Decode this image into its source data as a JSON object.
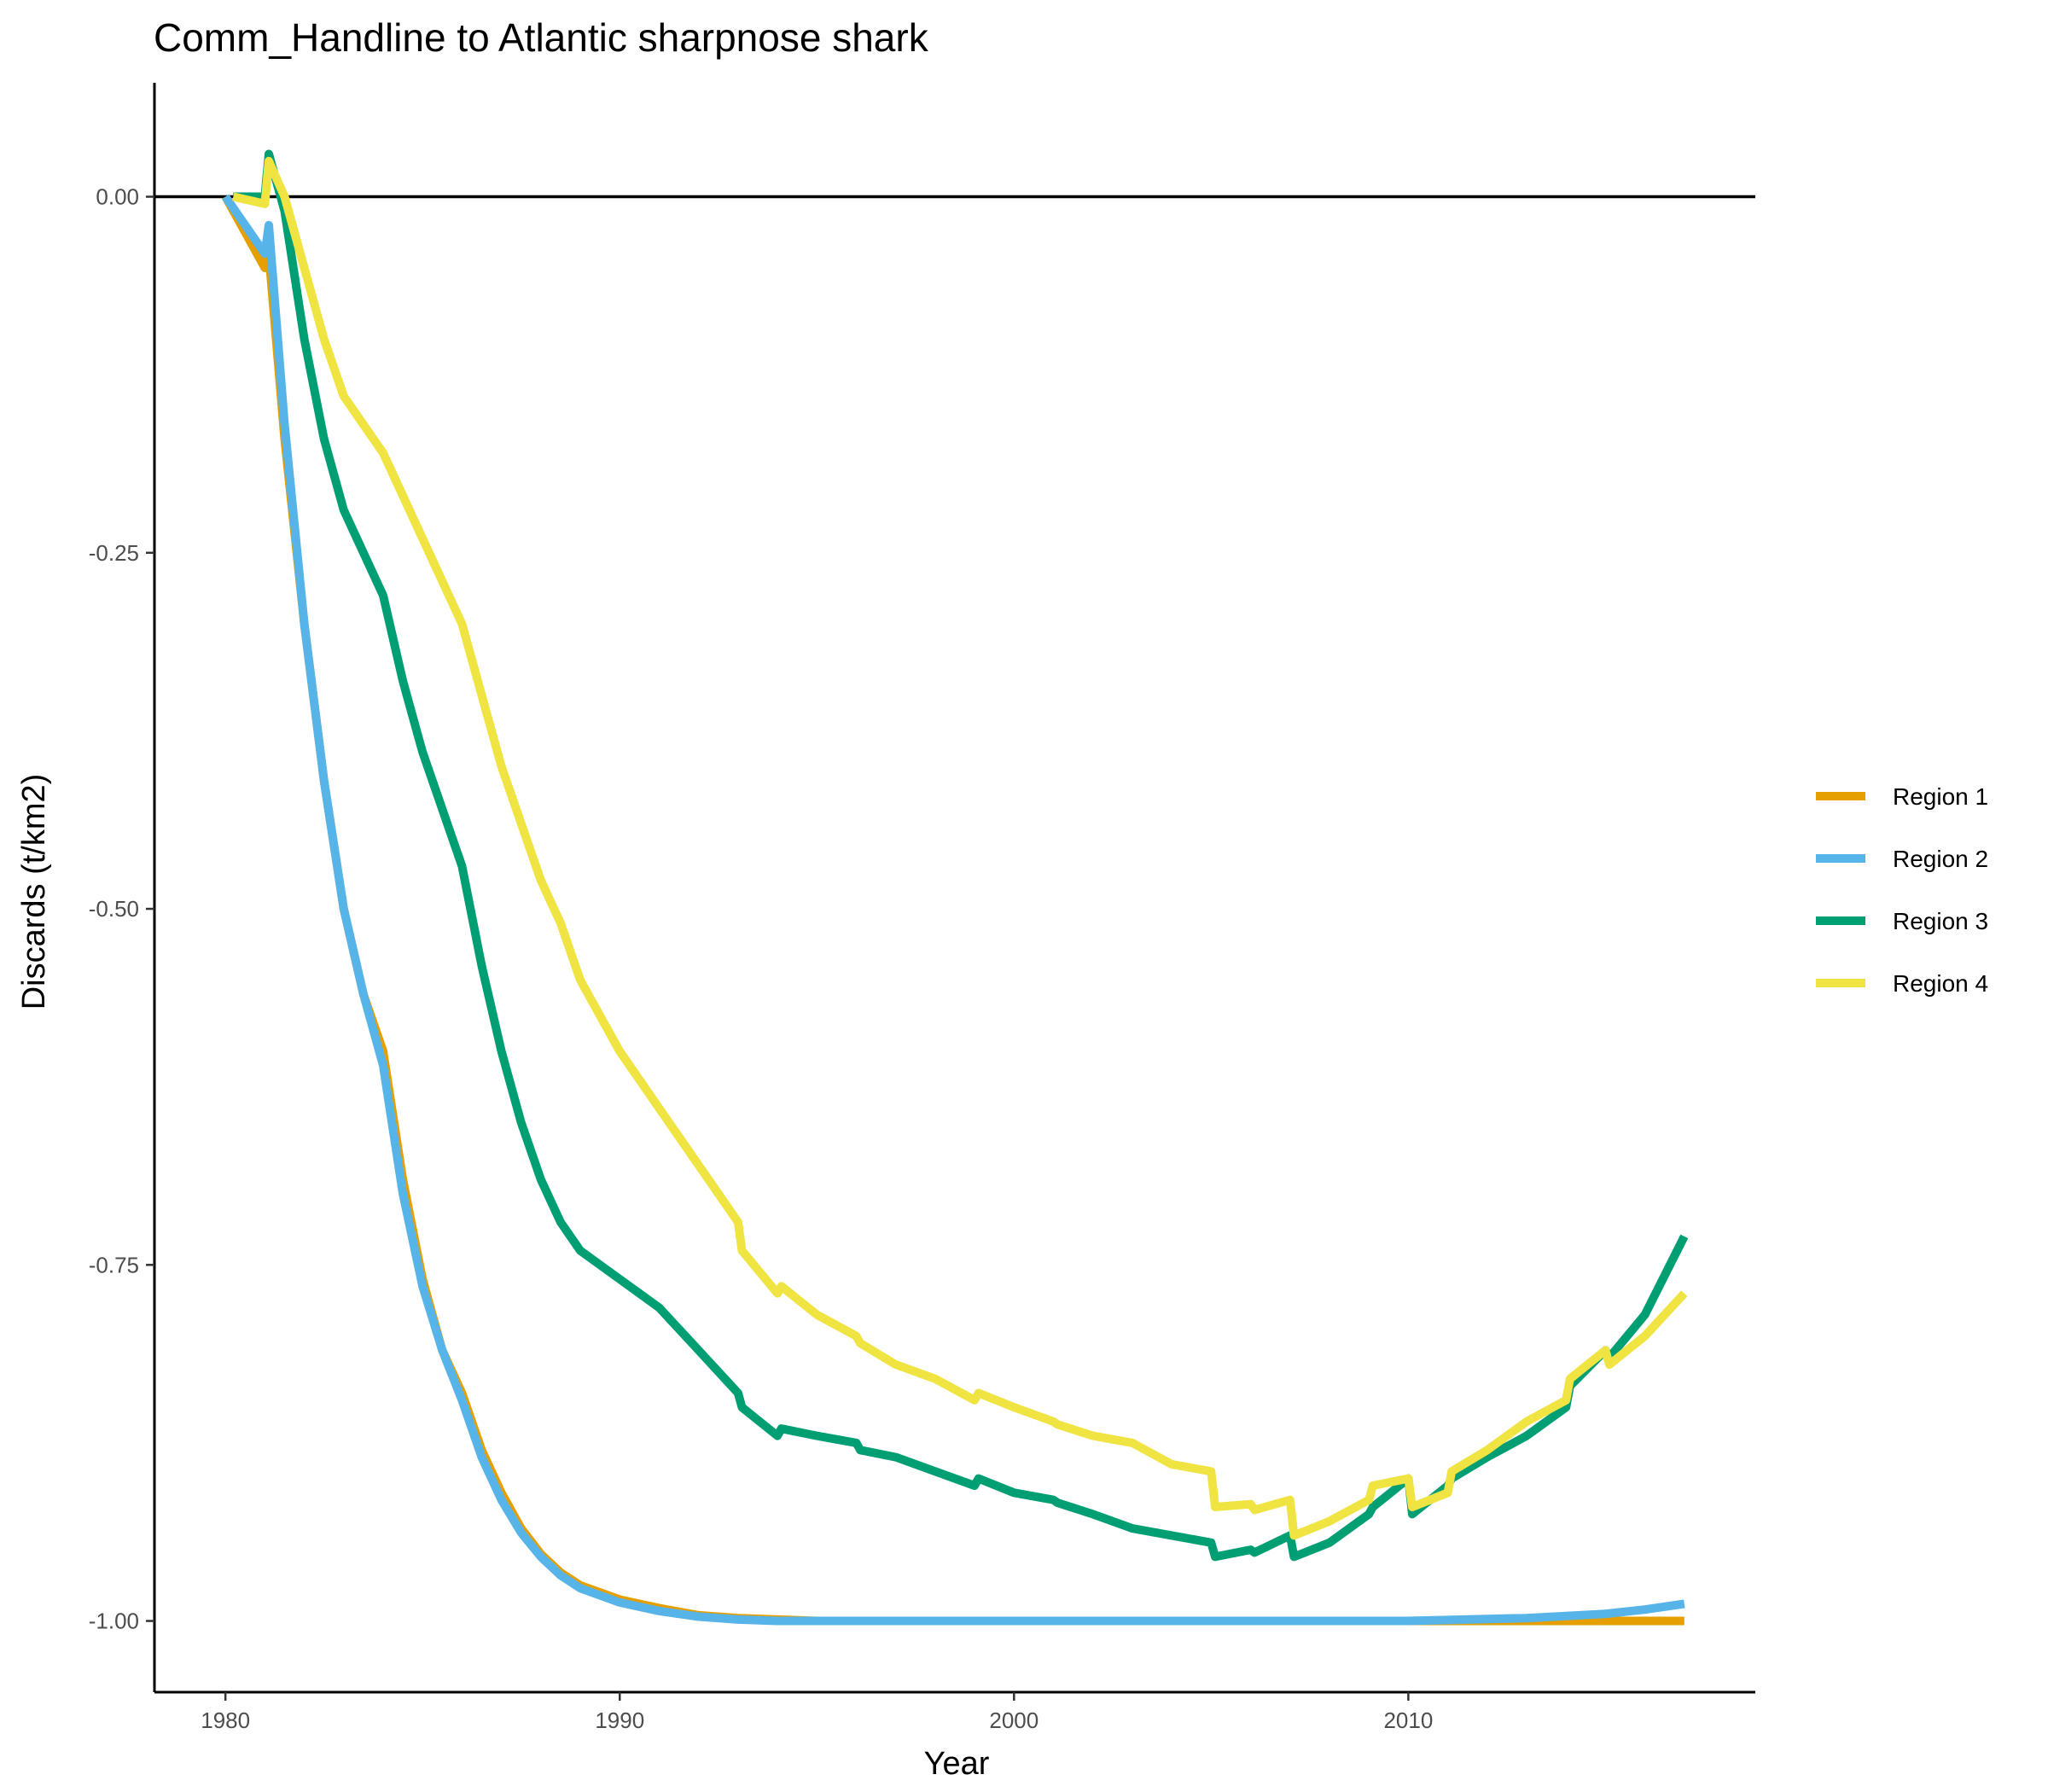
{
  "chart_data": {
    "type": "line",
    "title": "Comm_Handline to Atlantic sharpnose shark",
    "xlabel": "Year",
    "ylabel": "Discards (t/km2)",
    "xlim": [
      1978.2,
      2018.8
    ],
    "ylim": [
      -1.05,
      0.08
    ],
    "xticks": [
      1980,
      1990,
      2000,
      2010
    ],
    "yticks": [
      0.0,
      -0.25,
      -0.5,
      -0.75,
      -1.0
    ],
    "ytick_labels": [
      "0.00",
      "-0.25",
      "-0.50",
      "-0.75",
      "-1.00"
    ],
    "reference_line_y": 0,
    "grid": false,
    "legend_position": "right",
    "series": [
      {
        "name": "Region 1",
        "color": "#E69F00",
        "x": [
          1980.0,
          1981.0,
          1981.1,
          1981.5,
          1982.0,
          1982.5,
          1983.0,
          1983.5,
          1984.0,
          1984.5,
          1985.0,
          1985.5,
          1986.0,
          1986.5,
          1987.0,
          1987.5,
          1988.0,
          1988.5,
          1989.0,
          1990.0,
          1991.0,
          1992.0,
          1993.0,
          1994.0,
          1995.0,
          2000.0,
          2005.0,
          2010.0,
          2015.0,
          2017.0
        ],
        "y": [
          0.0,
          -0.05,
          -0.04,
          -0.17,
          -0.3,
          -0.41,
          -0.5,
          -0.56,
          -0.6,
          -0.69,
          -0.76,
          -0.81,
          -0.84,
          -0.88,
          -0.91,
          -0.935,
          -0.953,
          -0.966,
          -0.975,
          -0.985,
          -0.991,
          -0.996,
          -0.998,
          -0.999,
          -1.0,
          -1.0,
          -1.0,
          -1.0,
          -1.0,
          -1.0
        ]
      },
      {
        "name": "Region 2",
        "color": "#56B4E9",
        "x": [
          1980.0,
          1981.0,
          1981.1,
          1981.5,
          1982.0,
          1982.5,
          1983.0,
          1983.5,
          1984.0,
          1984.5,
          1985.0,
          1985.5,
          1986.0,
          1986.5,
          1987.0,
          1987.5,
          1988.0,
          1988.5,
          1989.0,
          1990.0,
          1991.0,
          1992.0,
          1993.0,
          1994.0,
          1995.0,
          2000.0,
          2005.0,
          2010.0,
          2013.0,
          2015.0,
          2016.0,
          2017.0
        ],
        "y": [
          0.0,
          -0.04,
          -0.02,
          -0.16,
          -0.3,
          -0.41,
          -0.5,
          -0.56,
          -0.61,
          -0.7,
          -0.765,
          -0.81,
          -0.845,
          -0.885,
          -0.915,
          -0.938,
          -0.955,
          -0.968,
          -0.977,
          -0.987,
          -0.993,
          -0.997,
          -0.999,
          -1.0,
          -1.0,
          -1.0,
          -1.0,
          -1.0,
          -0.998,
          -0.995,
          -0.992,
          -0.988
        ]
      },
      {
        "name": "Region 3",
        "color": "#009E73",
        "x": [
          1980.2,
          1981.0,
          1981.1,
          1981.5,
          1982.0,
          1982.5,
          1983.0,
          1983.5,
          1984.0,
          1984.5,
          1985.0,
          1985.5,
          1986.0,
          1986.5,
          1987.0,
          1987.5,
          1988.0,
          1988.5,
          1989.0,
          1990.0,
          1991.0,
          1992.0,
          1993.0,
          1993.1,
          1994.0,
          1994.1,
          1995.0,
          1996.0,
          1996.1,
          1997.0,
          1998.0,
          1999.0,
          1999.1,
          2000.0,
          2001.0,
          2001.1,
          2002.0,
          2003.0,
          2004.0,
          2005.0,
          2005.1,
          2006.0,
          2006.1,
          2007.0,
          2007.1,
          2008.0,
          2009.0,
          2009.1,
          2010.0,
          2010.1,
          2011.0,
          2011.1,
          2012.0,
          2013.0,
          2014.0,
          2014.1,
          2015.0,
          2015.1,
          2016.0,
          2017.0
        ],
        "y": [
          0.0,
          0.0,
          0.03,
          -0.01,
          -0.1,
          -0.17,
          -0.22,
          -0.25,
          -0.28,
          -0.34,
          -0.39,
          -0.43,
          -0.47,
          -0.54,
          -0.6,
          -0.65,
          -0.69,
          -0.72,
          -0.74,
          -0.76,
          -0.78,
          -0.81,
          -0.84,
          -0.85,
          -0.87,
          -0.865,
          -0.87,
          -0.875,
          -0.88,
          -0.885,
          -0.895,
          -0.905,
          -0.9,
          -0.91,
          -0.915,
          -0.917,
          -0.925,
          -0.935,
          -0.94,
          -0.945,
          -0.955,
          -0.95,
          -0.952,
          -0.94,
          -0.955,
          -0.945,
          -0.925,
          -0.92,
          -0.9,
          -0.925,
          -0.905,
          -0.9,
          -0.885,
          -0.87,
          -0.85,
          -0.835,
          -0.81,
          -0.815,
          -0.785,
          -0.73
        ]
      },
      {
        "name": "Region 4",
        "color": "#F0E442",
        "x": [
          1980.2,
          1981.0,
          1981.1,
          1981.5,
          1982.0,
          1982.5,
          1983.0,
          1983.5,
          1984.0,
          1984.5,
          1985.0,
          1985.5,
          1986.0,
          1986.5,
          1987.0,
          1987.5,
          1988.0,
          1988.5,
          1989.0,
          1990.0,
          1991.0,
          1992.0,
          1993.0,
          1993.1,
          1994.0,
          1994.1,
          1995.0,
          1996.0,
          1996.1,
          1997.0,
          1998.0,
          1999.0,
          1999.1,
          2000.0,
          2001.0,
          2001.1,
          2002.0,
          2003.0,
          2004.0,
          2005.0,
          2005.1,
          2006.0,
          2006.1,
          2007.0,
          2007.1,
          2008.0,
          2009.0,
          2009.1,
          2010.0,
          2010.1,
          2011.0,
          2011.1,
          2012.0,
          2013.0,
          2014.0,
          2014.1,
          2015.0,
          2015.1,
          2016.0,
          2017.0
        ],
        "y": [
          0.0,
          -0.005,
          0.025,
          0.0,
          -0.05,
          -0.1,
          -0.14,
          -0.16,
          -0.18,
          -0.21,
          -0.24,
          -0.27,
          -0.3,
          -0.35,
          -0.4,
          -0.44,
          -0.48,
          -0.51,
          -0.55,
          -0.6,
          -0.64,
          -0.68,
          -0.72,
          -0.74,
          -0.77,
          -0.765,
          -0.785,
          -0.8,
          -0.805,
          -0.82,
          -0.83,
          -0.845,
          -0.84,
          -0.85,
          -0.86,
          -0.862,
          -0.87,
          -0.875,
          -0.89,
          -0.895,
          -0.92,
          -0.918,
          -0.922,
          -0.915,
          -0.94,
          -0.93,
          -0.915,
          -0.905,
          -0.9,
          -0.92,
          -0.91,
          -0.895,
          -0.88,
          -0.86,
          -0.845,
          -0.83,
          -0.81,
          -0.82,
          -0.8,
          -0.77
        ]
      }
    ]
  }
}
